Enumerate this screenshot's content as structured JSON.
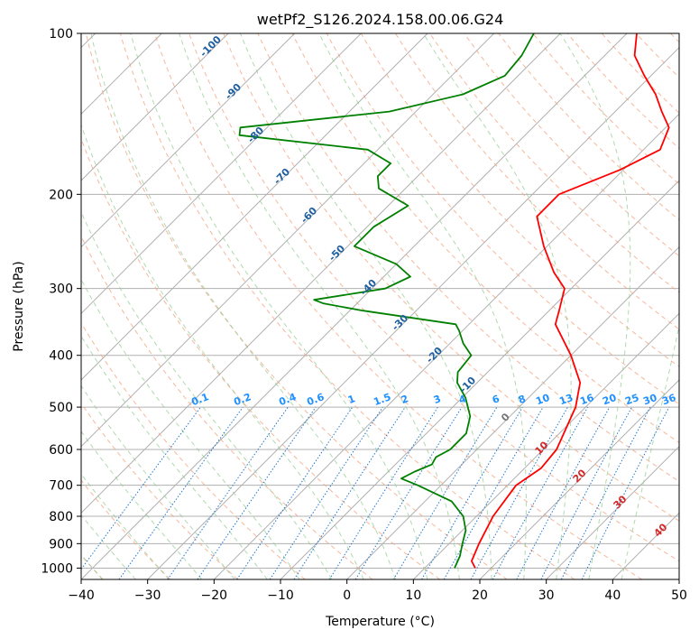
{
  "chart_data": {
    "type": "line",
    "title": "wetPf2_S126.2024.158.00.06.G24",
    "xlabel": "Temperature (°C)",
    "ylabel": "Pressure (hPa)",
    "xlim": [
      -40,
      50
    ],
    "ylim": [
      1050,
      100
    ],
    "y_scale": "log",
    "skew": true,
    "grid": true,
    "x_ticks": [
      -40,
      -30,
      -20,
      -10,
      0,
      10,
      20,
      30,
      40,
      50
    ],
    "y_ticks": [
      100,
      200,
      300,
      400,
      500,
      600,
      700,
      800,
      900,
      1000
    ],
    "series": [
      {
        "color": "#ff0000",
        "points": [
          [
            1000,
            17.6
          ],
          [
            970,
            16.0
          ],
          [
            900,
            14.5
          ],
          [
            800,
            12.5
          ],
          [
            700,
            11.3
          ],
          [
            650,
            12.5
          ],
          [
            600,
            12.0
          ],
          [
            500,
            8.5
          ],
          [
            450,
            5.5
          ],
          [
            400,
            0.0
          ],
          [
            350,
            -7.0
          ],
          [
            330,
            -8.5
          ],
          [
            300,
            -11.0
          ],
          [
            280,
            -15.0
          ],
          [
            250,
            -20.5
          ],
          [
            220,
            -26.0
          ],
          [
            200,
            -26.0
          ],
          [
            180,
            -20.5
          ],
          [
            165,
            -17.5
          ],
          [
            150,
            -19.5
          ],
          [
            140,
            -23.0
          ],
          [
            130,
            -26.5
          ],
          [
            120,
            -31.0
          ],
          [
            110,
            -35.5
          ],
          [
            100,
            -38.5
          ]
        ]
      },
      {
        "color": "#008000",
        "points": [
          [
            1000,
            14.5
          ],
          [
            950,
            13.5
          ],
          [
            900,
            12.0
          ],
          [
            850,
            10.5
          ],
          [
            800,
            8.0
          ],
          [
            750,
            4.0
          ],
          [
            700,
            -3.5
          ],
          [
            680,
            -7.0
          ],
          [
            660,
            -6.0
          ],
          [
            640,
            -4.5
          ],
          [
            620,
            -5.0
          ],
          [
            600,
            -4.0
          ],
          [
            560,
            -4.0
          ],
          [
            520,
            -6.0
          ],
          [
            480,
            -9.5
          ],
          [
            450,
            -13.0
          ],
          [
            430,
            -14.5
          ],
          [
            400,
            -15.0
          ],
          [
            380,
            -18.0
          ],
          [
            360,
            -20.5
          ],
          [
            350,
            -22.0
          ],
          [
            330,
            -38.0
          ],
          [
            320,
            -45.0
          ],
          [
            315,
            -47.0
          ],
          [
            300,
            -38.0
          ],
          [
            285,
            -36.0
          ],
          [
            270,
            -40.0
          ],
          [
            250,
            -49.0
          ],
          [
            230,
            -49.0
          ],
          [
            210,
            -47.0
          ],
          [
            195,
            -54.0
          ],
          [
            185,
            -56.0
          ],
          [
            175,
            -56.0
          ],
          [
            165,
            -61.5
          ],
          [
            155,
            -83.0
          ],
          [
            150,
            -84.0
          ],
          [
            140,
            -64.0
          ],
          [
            130,
            -55.5
          ],
          [
            120,
            -52.0
          ],
          [
            110,
            -52.5
          ],
          [
            100,
            -54.0
          ]
        ]
      }
    ],
    "dry_adiabat_labels": [
      "-100",
      "-90",
      "-80",
      "-70",
      "-60",
      "-50",
      "-40",
      "-30",
      "-20",
      "-10"
    ],
    "moist_adiabat_labels": [
      "0",
      "10",
      "20",
      "30",
      "40"
    ],
    "mixing_ratio_labels": [
      "0.1",
      "0.2",
      "0.4",
      "0.6",
      "1",
      "1.5",
      "2",
      "3",
      "4",
      "6",
      "8",
      "10",
      "13",
      "16",
      "20",
      "25",
      "30",
      "36"
    ],
    "colors": {
      "isotherm": "#b0b0b0",
      "isobar": "#b0b0b0",
      "dry_adiabat": "#f4a582",
      "moist_adiabat": "#8fc98f",
      "mixing_ratio": "#1f78d1",
      "dry_adiabat_label": "#1f5f9f",
      "moist_adiabat_label": "#d62728",
      "mixing_ratio_label": "#1e90ff"
    }
  }
}
